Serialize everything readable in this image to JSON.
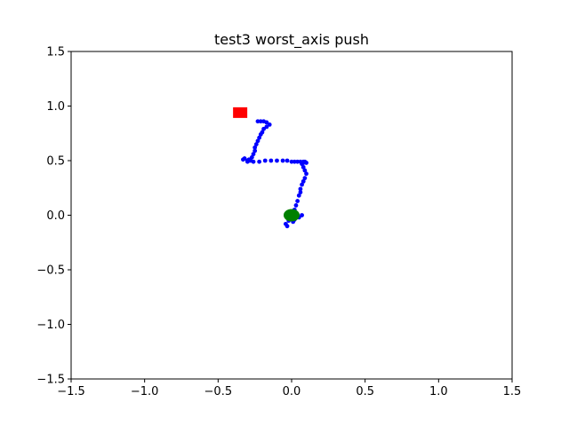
{
  "chart_data": {
    "type": "scatter",
    "title": "test3 worst_axis push",
    "xlabel": "",
    "ylabel": "",
    "xlim": [
      -1.5,
      1.5
    ],
    "ylim": [
      -1.5,
      1.5
    ],
    "grid": false,
    "xticks": [
      -1.5,
      -1.0,
      -0.5,
      0.0,
      0.5,
      1.0,
      1.5
    ],
    "xtick_labels": [
      "−1.5",
      "−1.0",
      "−0.5",
      "0.0",
      "0.5",
      "1.0",
      "1.5"
    ],
    "yticks": [
      -1.5,
      -1.0,
      -0.5,
      0.0,
      0.5,
      1.0,
      1.5
    ],
    "ytick_labels": [
      "−1.5",
      "−1.0",
      "−0.5",
      "0.0",
      "0.5",
      "1.0",
      "1.5"
    ],
    "series": [
      {
        "marker": "point",
        "color": "#0000ff",
        "x": [
          0.04,
          0.07,
          0.05,
          0.02,
          0.01,
          -0.02,
          -0.04,
          -0.03,
          -0.02,
          0.0,
          0.02,
          0.03,
          0.04,
          0.05,
          0.06,
          0.06,
          0.07,
          0.08,
          0.09,
          0.1,
          0.09,
          0.08,
          0.07,
          0.08,
          0.09,
          0.1,
          0.08,
          0.06,
          0.04,
          0.02,
          0.0,
          -0.03,
          -0.06,
          -0.1,
          -0.14,
          -0.18,
          -0.22,
          -0.26,
          -0.3,
          -0.33,
          -0.32,
          -0.29,
          -0.3,
          -0.28,
          -0.27,
          -0.26,
          -0.25,
          -0.25,
          -0.24,
          -0.23,
          -0.22,
          -0.21,
          -0.2,
          -0.19,
          -0.17,
          -0.15,
          -0.17,
          -0.19,
          -0.21,
          -0.23
        ],
        "y": [
          0.0,
          0.0,
          -0.02,
          -0.04,
          -0.06,
          -0.05,
          -0.08,
          -0.1,
          -0.04,
          0.02,
          0.05,
          0.09,
          0.13,
          0.18,
          0.21,
          0.24,
          0.28,
          0.31,
          0.34,
          0.38,
          0.41,
          0.44,
          0.47,
          0.48,
          0.49,
          0.48,
          0.49,
          0.49,
          0.49,
          0.49,
          0.49,
          0.5,
          0.5,
          0.5,
          0.5,
          0.5,
          0.49,
          0.49,
          0.5,
          0.51,
          0.52,
          0.51,
          0.49,
          0.5,
          0.53,
          0.56,
          0.59,
          0.62,
          0.65,
          0.68,
          0.71,
          0.74,
          0.76,
          0.79,
          0.81,
          0.83,
          0.85,
          0.86,
          0.86,
          0.86
        ]
      },
      {
        "marker": "square",
        "color": "#ff0000",
        "x": [
          -0.35
        ],
        "y": [
          0.94
        ]
      },
      {
        "marker": "circle",
        "color": "#008000",
        "x": [
          0.0
        ],
        "y": [
          0.0
        ]
      }
    ]
  }
}
